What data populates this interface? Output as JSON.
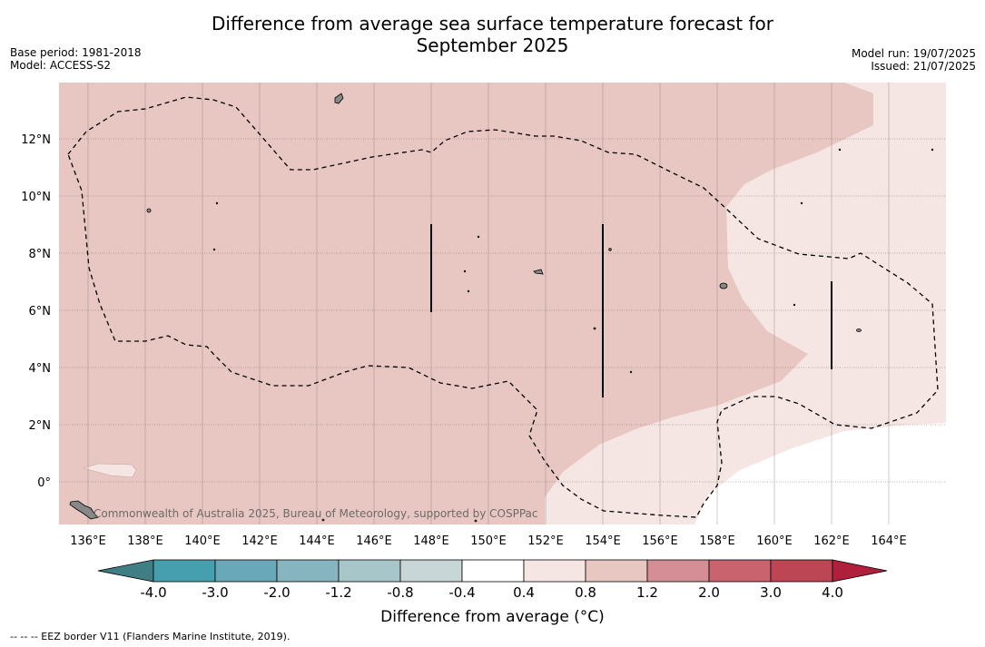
{
  "title_line1": "Difference from average sea surface temperature forecast for",
  "title_line2": "September 2025",
  "base_period": "Base period: 1981-2018",
  "model": "Model: ACCESS-S2",
  "model_run": "Model run: 19/07/2025",
  "issued": "Issued: 21/07/2025",
  "attribution": "Commonwealth of Australia 2025, Bureau of Meteorology, supported by COSPPac",
  "footnote": "--  --  -- EEZ border V11 (Flanders Marine Institute, 2019).",
  "colorbar": {
    "label": "Difference from average (°C)",
    "ticks": [
      "-4.0",
      "-3.0",
      "-2.0",
      "-1.2",
      "-0.8",
      "-0.4",
      "0.4",
      "0.8",
      "1.2",
      "2.0",
      "3.0",
      "4.0"
    ],
    "colors": [
      "#469fae",
      "#68a8b8",
      "#86b5c0",
      "#a7c6ca",
      "#c9d6d8",
      "#ffffff",
      "#f5e6e4",
      "#e8c6c2",
      "#d58e96",
      "#c9646f",
      "#bd4655"
    ],
    "low_extend_color": "#3f7e84",
    "high_extend_color": "#b0203c"
  },
  "map": {
    "x_ticks": [
      "136°E",
      "138°E",
      "140°E",
      "142°E",
      "144°E",
      "146°E",
      "148°E",
      "150°E",
      "152°E",
      "154°E",
      "156°E",
      "158°E",
      "160°E",
      "162°E",
      "164°E"
    ],
    "y_ticks": [
      "12°N",
      "10°N",
      "8°N",
      "6°N",
      "4°N",
      "2°N",
      "0°"
    ],
    "fill_colors": {
      "anomaly_0p8_1p2": "#e8c6c2",
      "anomaly_0p4_0p8": "#f5e6e4",
      "anomaly_m0p4_0p4": "#ffffff",
      "land": "#888888"
    }
  }
}
